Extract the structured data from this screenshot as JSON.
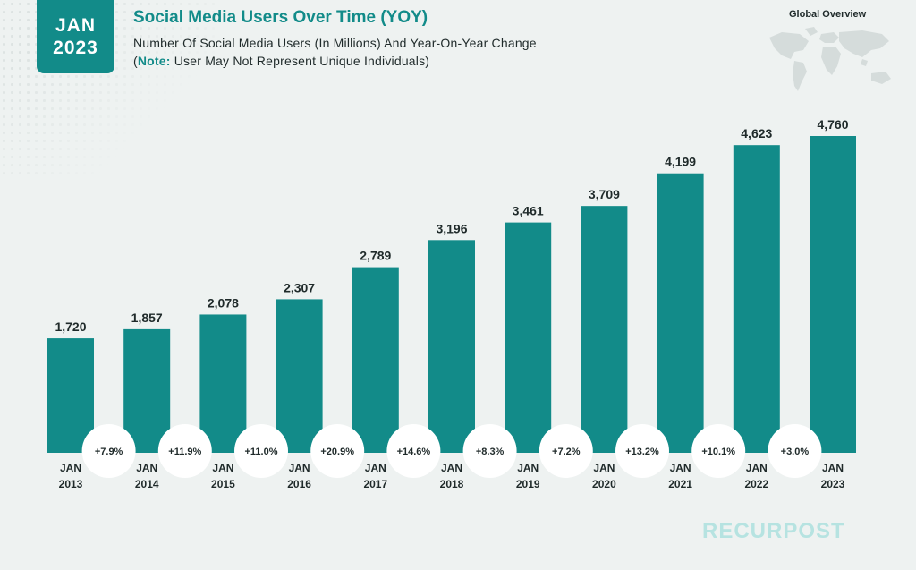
{
  "badge": {
    "month": "JAN",
    "year": "2023"
  },
  "header": {
    "title": "Social Media Users Over Time (YOY)",
    "subtitle_line1": "Number Of Social Media Users (In Millions) And Year-On-Year Change",
    "note_open": "(",
    "note_label": "Note:",
    "note_text": " User May Not Represent Unique Individuals)",
    "region": "Global Overview"
  },
  "brand": {
    "name": "RECURPOST"
  },
  "colors": {
    "accent": "#128b89",
    "bar": "#128b89",
    "text": "#1f2a2a",
    "background": "#eef2f1",
    "bubble": "#ffffff",
    "brand": "#b6e3e1"
  },
  "chart_data": {
    "type": "bar",
    "title": "",
    "xlabel": "",
    "ylabel": "",
    "categories": [
      [
        "JAN",
        "2013"
      ],
      [
        "JAN",
        "2014"
      ],
      [
        "JAN",
        "2015"
      ],
      [
        "JAN",
        "2016"
      ],
      [
        "JAN",
        "2017"
      ],
      [
        "JAN",
        "2018"
      ],
      [
        "JAN",
        "2019"
      ],
      [
        "JAN",
        "2020"
      ],
      [
        "JAN",
        "2021"
      ],
      [
        "JAN",
        "2022"
      ],
      [
        "JAN",
        "2023"
      ]
    ],
    "values": [
      1720,
      1857,
      2078,
      2307,
      2789,
      3196,
      3461,
      3709,
      4199,
      4623,
      4760
    ],
    "value_labels": [
      "1,720",
      "1,857",
      "2,078",
      "2,307",
      "2,789",
      "3,196",
      "3,461",
      "3,709",
      "4,199",
      "4,623",
      "4,760"
    ],
    "yoy_changes": [
      "+7.9%",
      "+11.9%",
      "+11.0%",
      "+20.9%",
      "+14.6%",
      "+8.3%",
      "+7.2%",
      "+13.2%",
      "+10.1%",
      "+3.0%"
    ],
    "ylim": [
      0,
      4760
    ],
    "grid": false,
    "legend": "none"
  }
}
